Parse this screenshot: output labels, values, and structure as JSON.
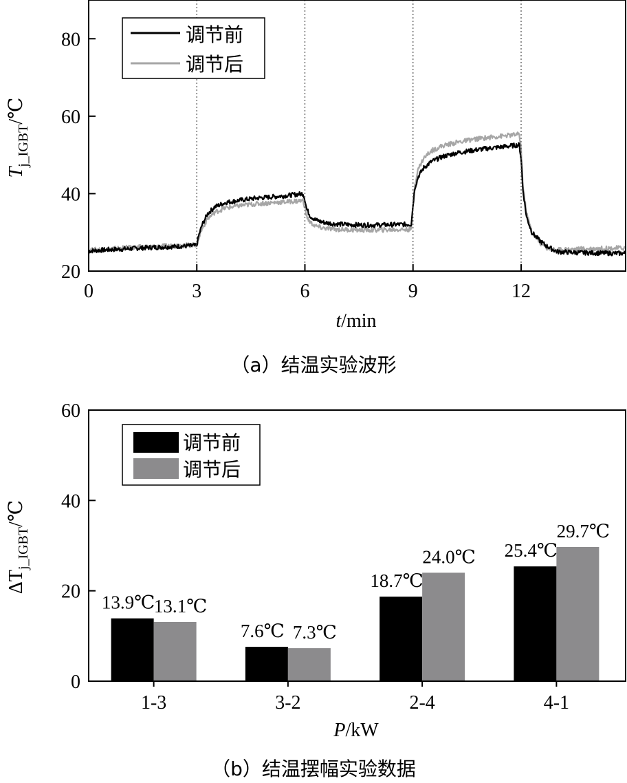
{
  "chart_data": [
    {
      "type": "line",
      "caption": "（a）结温实验波形",
      "xlabel_var": "t",
      "xlabel_unit": "/min",
      "ylabel_var": "T",
      "ylabel_sub": "j_IGBT",
      "ylabel_unit": "/℃",
      "xlim": [
        0,
        14.9
      ],
      "ylim": [
        20,
        90
      ],
      "xticks": [
        0,
        3,
        6,
        9,
        12
      ],
      "yticks": [
        20,
        40,
        60,
        80
      ],
      "vlines": [
        3,
        6,
        9,
        12
      ],
      "grid": false,
      "legend_position": "top-left",
      "series": [
        {
          "name": "调节前",
          "color": "#000000",
          "x": [
            0,
            0.5,
            1,
            1.5,
            2,
            2.5,
            3,
            3.05,
            3.15,
            3.3,
            3.5,
            3.8,
            4.2,
            4.6,
            5.0,
            5.5,
            5.95,
            6.0,
            6.05,
            6.15,
            6.3,
            6.5,
            6.8,
            7.2,
            7.6,
            8.0,
            8.5,
            8.95,
            9.0,
            9.05,
            9.15,
            9.3,
            9.5,
            9.8,
            10.2,
            10.6,
            11.0,
            11.5,
            11.95,
            12.0,
            12.05,
            12.15,
            12.3,
            12.5,
            12.7,
            13.0,
            13.5,
            14.0,
            14.5,
            14.9
          ],
          "y": [
            25.2,
            25.5,
            25.7,
            26.0,
            26.2,
            26.4,
            26.6,
            29.0,
            32.0,
            34.8,
            36.6,
            37.7,
            38.3,
            38.8,
            39.1,
            39.5,
            40.0,
            38.5,
            36.0,
            34.2,
            33.2,
            32.6,
            32.2,
            32.0,
            31.9,
            31.9,
            32.0,
            32.1,
            37.0,
            41.5,
            44.5,
            46.7,
            48.2,
            49.5,
            50.5,
            51.1,
            51.6,
            52.1,
            52.6,
            49.0,
            41.0,
            34.0,
            30.0,
            28.0,
            26.5,
            25.0,
            24.8,
            24.7,
            24.6,
            24.6
          ]
        },
        {
          "name": "调节后",
          "color": "#a6a6a6",
          "x": [
            0,
            0.5,
            1,
            1.5,
            2,
            2.5,
            3,
            3.05,
            3.15,
            3.3,
            3.5,
            3.8,
            4.2,
            4.6,
            5.0,
            5.5,
            5.95,
            6.0,
            6.05,
            6.15,
            6.3,
            6.5,
            6.8,
            7.2,
            7.6,
            8.0,
            8.5,
            8.95,
            9.0,
            9.05,
            9.15,
            9.3,
            9.5,
            9.8,
            10.2,
            10.6,
            11.0,
            11.5,
            11.95,
            12.0,
            12.05,
            12.15,
            12.3,
            12.5,
            12.7,
            13.0,
            13.5,
            14.0,
            14.5,
            14.9
          ],
          "y": [
            25.4,
            25.7,
            26.0,
            26.2,
            26.4,
            26.6,
            26.8,
            28.5,
            31.0,
            33.5,
            35.2,
            36.3,
            36.9,
            37.3,
            37.6,
            37.9,
            38.2,
            36.5,
            34.0,
            32.5,
            31.6,
            31.1,
            30.8,
            30.7,
            30.6,
            30.6,
            30.7,
            30.8,
            37.0,
            42.5,
            46.5,
            49.2,
            51.0,
            52.3,
            53.2,
            53.9,
            54.4,
            54.9,
            55.3,
            51.5,
            42.0,
            35.0,
            30.0,
            27.5,
            26.0,
            25.5,
            25.7,
            25.8,
            25.9,
            26.0
          ]
        }
      ]
    },
    {
      "type": "bar",
      "caption": "（b）结温摆幅实验数据",
      "xlabel_var": "P",
      "xlabel_unit": "/kW",
      "ylabel_prefix": "ΔT",
      "ylabel_sub": "j_IGBT",
      "ylabel_unit": "/℃",
      "categories": [
        "1-3",
        "3-2",
        "2-4",
        "4-1"
      ],
      "ylim": [
        0,
        60
      ],
      "yticks": [
        0,
        20,
        40,
        60
      ],
      "grid": false,
      "legend_position": "top-left",
      "series": [
        {
          "name": "调节前",
          "color": "#000000",
          "values": [
            13.9,
            7.6,
            18.7,
            25.4
          ],
          "labels": [
            "13.9℃",
            "7.6℃",
            "18.7℃",
            "25.4℃"
          ]
        },
        {
          "name": "调节后",
          "color": "#8c8b8d",
          "values": [
            13.1,
            7.3,
            24.0,
            29.7
          ],
          "labels": [
            "13.1℃",
            "7.3℃",
            "24.0℃",
            "29.7℃"
          ]
        }
      ]
    }
  ]
}
